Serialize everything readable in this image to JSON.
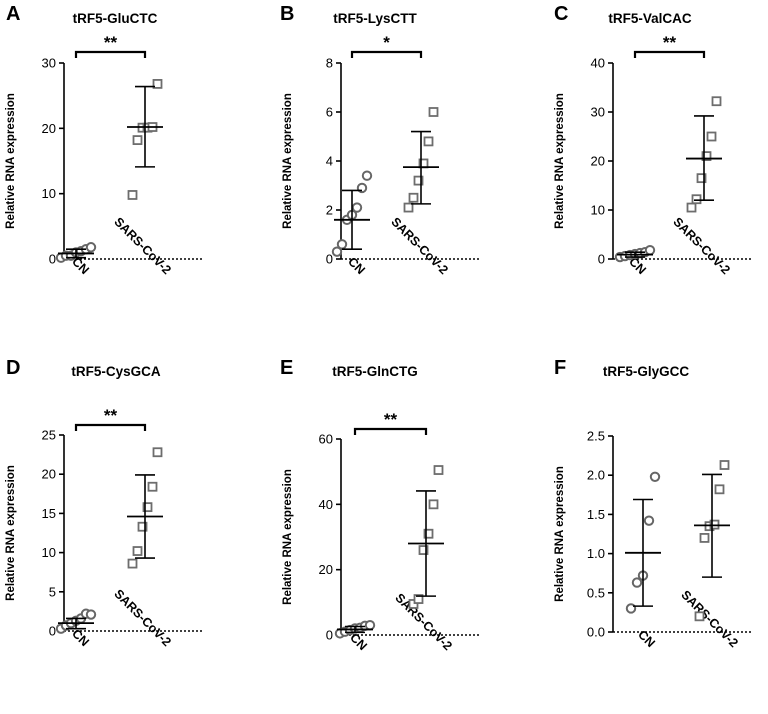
{
  "colors": {
    "circle": "#666666",
    "square": "#6d6d6d",
    "axis": "#000000",
    "bracket": "#000000"
  },
  "chart_data": [
    {
      "type": "scatter",
      "label": "A",
      "title": "tRF5-GluCTC",
      "ylabel": "Relative RNA expression",
      "ylim": [
        0,
        30
      ],
      "yticks": [
        0,
        10,
        20,
        30
      ],
      "categories": [
        "CN",
        "SARS-CoV-2"
      ],
      "significance": "**",
      "groups": [
        {
          "name": "CN",
          "marker": "circle",
          "points": [
            0.2,
            0.5,
            0.5,
            1.0,
            1.2,
            1.5,
            1.8
          ],
          "mean": 0.85,
          "sd_low": 0.2,
          "sd_high": 1.5
        },
        {
          "name": "SARS-CoV-2",
          "marker": "square",
          "points": [
            9.8,
            18.2,
            20.1,
            20.1,
            20.2,
            26.8
          ],
          "mean": 20.2,
          "sd_low": 14.1,
          "sd_high": 26.4
        }
      ]
    },
    {
      "type": "scatter",
      "label": "B",
      "title": "tRF5-LysCTT",
      "ylabel": "Relative RNA expression",
      "ylim": [
        0,
        8
      ],
      "yticks": [
        0,
        2,
        4,
        6,
        8
      ],
      "categories": [
        "CN",
        "SARS-CoV-2"
      ],
      "significance": "*",
      "groups": [
        {
          "name": "CN",
          "marker": "circle",
          "points": [
            0.3,
            0.6,
            1.6,
            1.8,
            2.1,
            2.9,
            3.4
          ],
          "mean": 1.6,
          "sd_low": 0.4,
          "sd_high": 2.8
        },
        {
          "name": "SARS-CoV-2",
          "marker": "square",
          "points": [
            2.1,
            2.5,
            3.2,
            3.9,
            4.8,
            6.0
          ],
          "mean": 3.75,
          "sd_low": 2.25,
          "sd_high": 5.2
        }
      ]
    },
    {
      "type": "scatter",
      "label": "C",
      "title": "tRF5-ValCAC",
      "ylabel": "Relative RNA expression",
      "ylim": [
        0,
        40
      ],
      "yticks": [
        0,
        10,
        20,
        30,
        40
      ],
      "categories": [
        "CN",
        "SARS-CoV-2"
      ],
      "significance": "**",
      "groups": [
        {
          "name": "CN",
          "marker": "circle",
          "points": [
            0.4,
            0.6,
            0.8,
            1.0,
            1.2,
            1.4,
            1.8
          ],
          "mean": 0.9,
          "sd_low": 0.4,
          "sd_high": 1.4
        },
        {
          "name": "SARS-CoV-2",
          "marker": "square",
          "points": [
            10.5,
            12.2,
            16.5,
            21.0,
            25.0,
            32.2
          ],
          "mean": 20.5,
          "sd_low": 12.0,
          "sd_high": 29.2
        }
      ]
    },
    {
      "type": "scatter",
      "label": "D",
      "title": "tRF5-CysGCA",
      "ylabel": "Relative RNA expression",
      "ylim": [
        0,
        25
      ],
      "yticks": [
        0,
        5,
        10,
        15,
        20,
        25
      ],
      "categories": [
        "CN",
        "SARS-CoV-2"
      ],
      "significance": "**",
      "groups": [
        {
          "name": "CN",
          "marker": "circle",
          "points": [
            0.3,
            0.7,
            1.0,
            1.3,
            1.6,
            2.2,
            2.1
          ],
          "mean": 1.0,
          "sd_low": 0.3,
          "sd_high": 1.6
        },
        {
          "name": "SARS-CoV-2",
          "marker": "square",
          "points": [
            8.6,
            10.2,
            13.3,
            15.8,
            18.4,
            22.8
          ],
          "mean": 14.6,
          "sd_low": 9.3,
          "sd_high": 19.9
        }
      ]
    },
    {
      "type": "scatter",
      "label": "E",
      "title": "tRF5-GlnCTG",
      "ylabel": "Relative RNA expression",
      "ylim": [
        0,
        60
      ],
      "yticks": [
        0,
        20,
        40,
        60
      ],
      "categories": [
        "CN",
        "SARS-CoV-2"
      ],
      "significance": "**",
      "groups": [
        {
          "name": "CN",
          "marker": "circle",
          "points": [
            0.5,
            1.0,
            1.5,
            2.0,
            2.2,
            2.8,
            3.0
          ],
          "mean": 1.7,
          "sd_low": 0.8,
          "sd_high": 2.6
        },
        {
          "name": "SARS-CoV-2",
          "marker": "square",
          "points": [
            9.5,
            11.0,
            26.0,
            31.0,
            40.0,
            50.5
          ],
          "mean": 28.0,
          "sd_low": 11.9,
          "sd_high": 44.1
        }
      ]
    },
    {
      "type": "scatter",
      "label": "F",
      "title": "tRF5-GlyGCC",
      "ylabel": "Relative RNA expression",
      "ylim": [
        0,
        2.5
      ],
      "yticks": [
        "0.0",
        "0.5",
        "1.0",
        "1.5",
        "2.0",
        "2.5"
      ],
      "categories": [
        "CN",
        "SARS-CoV-2"
      ],
      "significance": "",
      "groups": [
        {
          "name": "CN",
          "marker": "circle",
          "points": [
            0.3,
            0.63,
            0.72,
            1.42,
            1.98
          ],
          "mean": 1.01,
          "sd_low": 0.33,
          "sd_high": 1.69
        },
        {
          "name": "SARS-CoV-2",
          "marker": "square",
          "points": [
            0.2,
            1.2,
            1.35,
            1.37,
            1.82,
            2.13
          ],
          "mean": 1.36,
          "sd_low": 0.7,
          "sd_high": 2.01
        }
      ]
    }
  ]
}
